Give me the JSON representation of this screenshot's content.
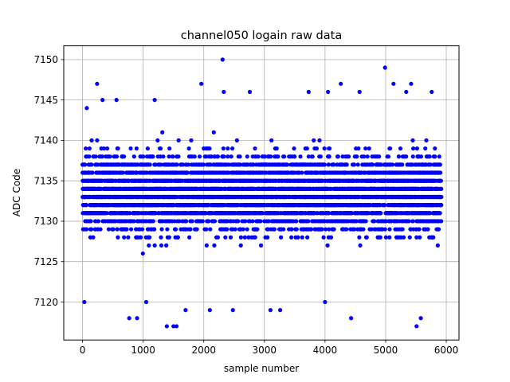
{
  "chart_data": {
    "type": "scatter",
    "title": "channel050 logain raw data",
    "xlabel": "sample number",
    "ylabel": "ADC Code",
    "xlim": [
      -310,
      6210
    ],
    "ylim": [
      7115.3,
      7151.7
    ],
    "xticks": [
      0,
      1000,
      2000,
      3000,
      4000,
      5000,
      6000
    ],
    "yticks": [
      7120,
      7125,
      7130,
      7135,
      7140,
      7145,
      7150
    ],
    "grid": true,
    "marker_color": "#0000ff",
    "n_points": 5920,
    "series": [
      {
        "values": {
          "x_range": [
            0,
            5919
          ],
          "y_core_range": [
            7127,
            7141
          ],
          "y_center": 7133,
          "outliers": [
            {
              "x": 30,
              "y": 7120
            },
            {
              "x": 70,
              "y": 7144
            },
            {
              "x": 240,
              "y": 7147
            },
            {
              "x": 330,
              "y": 7145
            },
            {
              "x": 560,
              "y": 7145
            },
            {
              "x": 770,
              "y": 7118
            },
            {
              "x": 900,
              "y": 7118
            },
            {
              "x": 1050,
              "y": 7120
            },
            {
              "x": 1190,
              "y": 7145
            },
            {
              "x": 1390,
              "y": 7117
            },
            {
              "x": 1500,
              "y": 7117
            },
            {
              "x": 1550,
              "y": 7117
            },
            {
              "x": 1700,
              "y": 7119
            },
            {
              "x": 1960,
              "y": 7147
            },
            {
              "x": 2100,
              "y": 7119
            },
            {
              "x": 2310,
              "y": 7150
            },
            {
              "x": 2330,
              "y": 7146
            },
            {
              "x": 2480,
              "y": 7119
            },
            {
              "x": 2760,
              "y": 7146
            },
            {
              "x": 3100,
              "y": 7119
            },
            {
              "x": 3260,
              "y": 7119
            },
            {
              "x": 3730,
              "y": 7146
            },
            {
              "x": 4000,
              "y": 7120
            },
            {
              "x": 4050,
              "y": 7146
            },
            {
              "x": 4260,
              "y": 7147
            },
            {
              "x": 4430,
              "y": 7118
            },
            {
              "x": 4570,
              "y": 7146
            },
            {
              "x": 4990,
              "y": 7149
            },
            {
              "x": 5130,
              "y": 7147
            },
            {
              "x": 5340,
              "y": 7146
            },
            {
              "x": 5420,
              "y": 7147
            },
            {
              "x": 5510,
              "y": 7117
            },
            {
              "x": 5580,
              "y": 7118
            },
            {
              "x": 5760,
              "y": 7146
            }
          ]
        }
      }
    ]
  }
}
